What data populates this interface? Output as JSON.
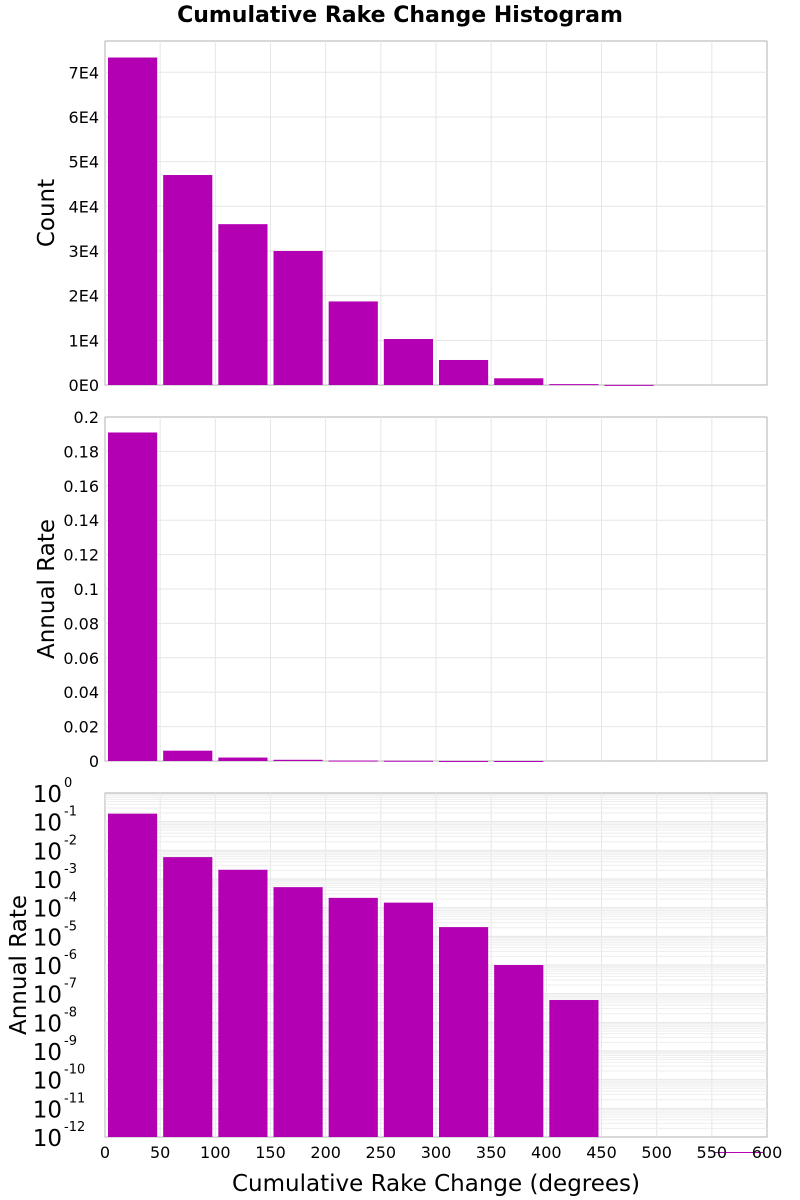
{
  "figure": {
    "title": "Cumulative Rake Change Histogram",
    "bar_color": "#b300b3",
    "background": "#ffffff"
  },
  "chart_data": [
    {
      "type": "bar",
      "x": [
        25,
        75,
        125,
        175,
        225,
        275,
        325,
        375,
        425,
        475,
        525,
        575
      ],
      "bin_width": 50,
      "values": [
        73300,
        47000,
        36000,
        30000,
        18700,
        10300,
        5600,
        1500,
        200,
        30,
        0,
        0
      ],
      "ylabel": "Count",
      "ylim": [
        0,
        77000
      ],
      "xlim": [
        0,
        600
      ],
      "yticks": [
        0,
        10000,
        20000,
        30000,
        40000,
        50000,
        60000,
        70000
      ],
      "ytick_labels": [
        "0E0",
        "1E4",
        "2E4",
        "3E4",
        "4E4",
        "5E4",
        "6E4",
        "7E4"
      ],
      "grid": true
    },
    {
      "type": "bar",
      "x": [
        25,
        75,
        125,
        175,
        225,
        275,
        325,
        375,
        425,
        475,
        525,
        575
      ],
      "bin_width": 50,
      "values": [
        0.191,
        0.006,
        0.002,
        0.0007,
        0.00025,
        0.00015,
        2e-05,
        1e-06,
        0,
        0,
        0,
        0
      ],
      "ylabel": "Annual Rate",
      "ylim": [
        0,
        0.2
      ],
      "xlim": [
        0,
        600
      ],
      "yticks": [
        0,
        0.02,
        0.04,
        0.06,
        0.08,
        0.1,
        0.12,
        0.14,
        0.16,
        0.18,
        0.2
      ],
      "ytick_labels": [
        "0",
        "0.02",
        "0.04",
        "0.06",
        "0.08",
        "0.1",
        "0.12",
        "0.14",
        "0.16",
        "0.18",
        "0.2"
      ],
      "grid": true
    },
    {
      "type": "bar",
      "x": [
        25,
        75,
        125,
        175,
        225,
        275,
        325,
        375,
        425,
        475,
        525,
        575
      ],
      "bin_width": 50,
      "values": [
        0.19,
        0.0058,
        0.0021,
        0.00052,
        0.00022,
        0.00015,
        2.1e-05,
        1e-06,
        6e-08,
        0,
        0,
        3e-13
      ],
      "ylabel": "Annual Rate",
      "xlabel": "Cumulative Rake Change (degrees)",
      "yscale": "log",
      "ylim": [
        1e-12,
        1
      ],
      "xlim": [
        0,
        600
      ],
      "ytick_exponents": [
        "0",
        "-1",
        "-2",
        "-3",
        "-4",
        "-5",
        "-6",
        "-7",
        "-8",
        "-9",
        "-10",
        "-11",
        "-12"
      ],
      "ytick_base": "10",
      "xticks": [
        0,
        50,
        100,
        150,
        200,
        250,
        300,
        350,
        400,
        450,
        500,
        550,
        600
      ],
      "xtick_labels": [
        "0",
        "50",
        "100",
        "150",
        "200",
        "250",
        "300",
        "350",
        "400",
        "450",
        "500",
        "550",
        "600"
      ],
      "grid": true
    }
  ]
}
